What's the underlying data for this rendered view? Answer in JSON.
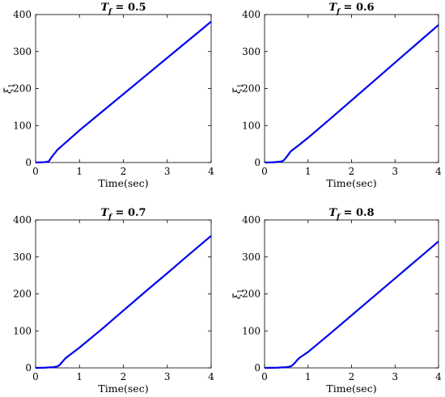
{
  "chart_data": [
    {
      "type": "line",
      "title": "T_f = 0.5",
      "title_parts": {
        "symbol": "T",
        "subscript": "f",
        "equals": "=",
        "value": "0.5"
      },
      "xlabel": "Time(sec)",
      "ylabel": "ξ_1",
      "ylabel_parts": {
        "symbol": "ξ",
        "subscript": "1"
      },
      "xlim": [
        0,
        4
      ],
      "ylim": [
        0,
        400
      ],
      "xticks": [
        "0",
        "1",
        "2",
        "3",
        "4"
      ],
      "yticks": [
        "0",
        "100",
        "200",
        "300",
        "400"
      ],
      "grid": false,
      "series": [
        {
          "color": "#0000ee",
          "x": [
            0,
            0.2,
            0.3,
            0.35,
            0.4,
            0.45,
            0.5,
            0.6,
            0.8,
            1.0,
            1.5,
            2.0,
            2.5,
            3.0,
            3.5,
            4.0
          ],
          "y": [
            0,
            1,
            3,
            12,
            20,
            27,
            35,
            45,
            66,
            87,
            136,
            185,
            234,
            283,
            332,
            381
          ]
        }
      ]
    },
    {
      "type": "line",
      "title": "T_f = 0.6",
      "title_parts": {
        "symbol": "T",
        "subscript": "f",
        "equals": "=",
        "value": "0.6"
      },
      "xlabel": "Time(sec)",
      "ylabel": "ξ_1",
      "ylabel_parts": {
        "symbol": "ξ",
        "subscript": "1"
      },
      "xlim": [
        0,
        4
      ],
      "ylim": [
        0,
        400
      ],
      "xticks": [
        "0",
        "1",
        "2",
        "3",
        "4"
      ],
      "yticks": [
        "0",
        "100",
        "200",
        "300",
        "400"
      ],
      "grid": false,
      "series": [
        {
          "color": "#0000ee",
          "x": [
            0,
            0.2,
            0.4,
            0.45,
            0.5,
            0.55,
            0.6,
            0.7,
            0.8,
            1.0,
            1.5,
            2.0,
            2.5,
            3.0,
            3.5,
            4.0
          ],
          "y": [
            0,
            0.5,
            3,
            7,
            14,
            22,
            30,
            39,
            48,
            67,
            117,
            168,
            219,
            270,
            321,
            372
          ]
        }
      ]
    },
    {
      "type": "line",
      "title": "T_f = 0.7",
      "title_parts": {
        "symbol": "T",
        "subscript": "f",
        "equals": "=",
        "value": "0.7"
      },
      "xlabel": "Time(sec)",
      "ylabel": "",
      "ylabel_parts": {
        "symbol": "",
        "subscript": ""
      },
      "xlim": [
        0,
        4
      ],
      "ylim": [
        0,
        400
      ],
      "xticks": [
        "0",
        "1",
        "2",
        "3",
        "4"
      ],
      "yticks": [
        "0",
        "100",
        "200",
        "300",
        "400"
      ],
      "grid": false,
      "series": [
        {
          "color": "#0000ee",
          "x": [
            0,
            0.2,
            0.4,
            0.5,
            0.55,
            0.6,
            0.65,
            0.7,
            0.8,
            1.0,
            1.5,
            2.0,
            2.5,
            3.0,
            3.5,
            4.0
          ],
          "y": [
            0,
            0.5,
            2,
            4,
            8,
            15,
            22,
            28,
            37,
            55,
            104,
            155,
            206,
            256,
            307,
            357
          ]
        }
      ]
    },
    {
      "type": "line",
      "title": "T_f = 0.8",
      "title_parts": {
        "symbol": "T",
        "subscript": "f",
        "equals": "=",
        "value": "0.8"
      },
      "xlabel": "Time(sec)",
      "ylabel": "ξ_1",
      "ylabel_parts": {
        "symbol": "ξ",
        "subscript": "1"
      },
      "xlim": [
        0,
        4
      ],
      "ylim": [
        0,
        400
      ],
      "xticks": [
        "0",
        "1",
        "2",
        "3",
        "4"
      ],
      "yticks": [
        "0",
        "100",
        "200",
        "300",
        "400"
      ],
      "grid": false,
      "series": [
        {
          "color": "#0000ee",
          "x": [
            0,
            0.3,
            0.5,
            0.6,
            0.65,
            0.7,
            0.75,
            0.8,
            0.9,
            1.0,
            1.5,
            2.0,
            2.5,
            3.0,
            3.5,
            4.0
          ],
          "y": [
            0,
            0.5,
            2,
            4,
            8,
            14,
            21,
            27,
            35,
            43,
            92,
            142,
            192,
            242,
            292,
            342
          ]
        }
      ]
    }
  ]
}
